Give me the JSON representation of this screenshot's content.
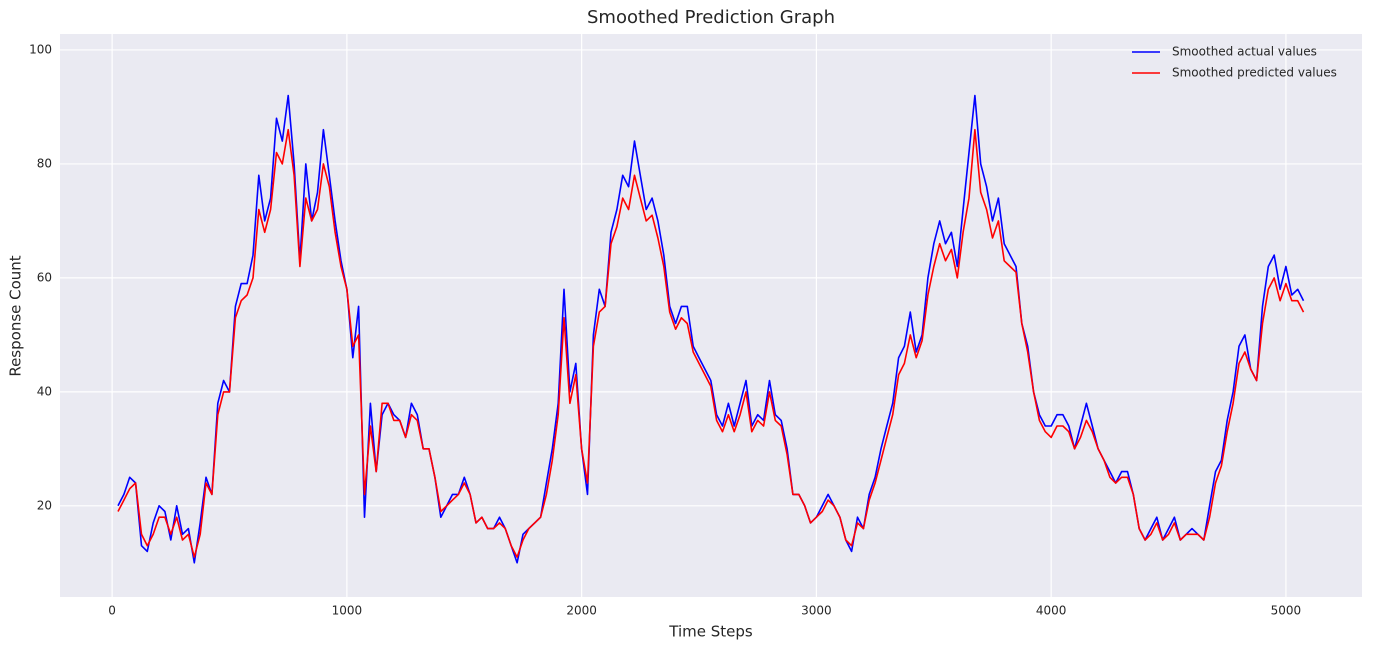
{
  "chart_data": {
    "type": "line",
    "title": "Smoothed Prediction Graph",
    "xlabel": "Time Steps",
    "ylabel": "Response Count",
    "x": [
      25,
      50,
      75,
      100,
      125,
      150,
      175,
      200,
      225,
      250,
      275,
      300,
      325,
      350,
      375,
      400,
      425,
      450,
      475,
      500,
      525,
      550,
      575,
      600,
      625,
      650,
      675,
      700,
      725,
      750,
      775,
      800,
      825,
      850,
      875,
      900,
      925,
      950,
      975,
      1000,
      1025,
      1050,
      1075,
      1100,
      1125,
      1150,
      1175,
      1200,
      1225,
      1250,
      1275,
      1300,
      1325,
      1350,
      1375,
      1400,
      1425,
      1450,
      1475,
      1500,
      1525,
      1550,
      1575,
      1600,
      1625,
      1650,
      1675,
      1700,
      1725,
      1750,
      1775,
      1800,
      1825,
      1850,
      1875,
      1900,
      1925,
      1950,
      1975,
      2000,
      2025,
      2050,
      2075,
      2100,
      2125,
      2150,
      2175,
      2200,
      2225,
      2250,
      2275,
      2300,
      2325,
      2350,
      2375,
      2400,
      2425,
      2450,
      2475,
      2500,
      2525,
      2550,
      2575,
      2600,
      2625,
      2650,
      2675,
      2700,
      2725,
      2750,
      2775,
      2800,
      2825,
      2850,
      2875,
      2900,
      2925,
      2950,
      2975,
      3000,
      3025,
      3050,
      3075,
      3100,
      3125,
      3150,
      3175,
      3200,
      3225,
      3250,
      3275,
      3300,
      3325,
      3350,
      3375,
      3400,
      3425,
      3450,
      3475,
      3500,
      3525,
      3550,
      3575,
      3600,
      3625,
      3650,
      3675,
      3700,
      3725,
      3750,
      3775,
      3800,
      3825,
      3850,
      3875,
      3900,
      3925,
      3950,
      3975,
      4000,
      4025,
      4050,
      4075,
      4100,
      4125,
      4150,
      4175,
      4200,
      4225,
      4250,
      4275,
      4300,
      4325,
      4350,
      4375,
      4400,
      4425,
      4450,
      4475,
      4500,
      4525,
      4550,
      4575,
      4600,
      4625,
      4650,
      4675,
      4700,
      4725,
      4750,
      4775,
      4800,
      4825,
      4850,
      4875,
      4900,
      4925,
      4950,
      4975,
      5000,
      5025,
      5050,
      5075
    ],
    "series": [
      {
        "name": "Smoothed actual values",
        "color": "#0000ff",
        "values": [
          20,
          22,
          25,
          24,
          13,
          12,
          17,
          20,
          19,
          14,
          20,
          15,
          16,
          10,
          17,
          25,
          22,
          38,
          42,
          40,
          55,
          59,
          59,
          64,
          78,
          70,
          74,
          88,
          84,
          92,
          80,
          63,
          80,
          70,
          75,
          86,
          78,
          70,
          63,
          58,
          46,
          55,
          18,
          38,
          26,
          36,
          38,
          36,
          35,
          32,
          38,
          36,
          30,
          30,
          25,
          18,
          20,
          22,
          22,
          25,
          22,
          17,
          18,
          16,
          16,
          18,
          16,
          13,
          10,
          15,
          16,
          17,
          18,
          24,
          30,
          38,
          58,
          40,
          45,
          30,
          22,
          50,
          58,
          55,
          68,
          72,
          78,
          76,
          84,
          78,
          72,
          74,
          70,
          64,
          55,
          52,
          55,
          55,
          48,
          46,
          44,
          42,
          36,
          34,
          38,
          34,
          38,
          42,
          34,
          36,
          35,
          42,
          36,
          35,
          30,
          22,
          22,
          20,
          17,
          18,
          20,
          22,
          20,
          18,
          14,
          12,
          18,
          16,
          22,
          25,
          30,
          34,
          38,
          46,
          48,
          54,
          47,
          50,
          60,
          66,
          70,
          66,
          68,
          62,
          72,
          82,
          92,
          80,
          76,
          70,
          74,
          66,
          64,
          62,
          52,
          48,
          40,
          36,
          34,
          34,
          36,
          36,
          34,
          30,
          34,
          38,
          34,
          30,
          28,
          26,
          24,
          26,
          26,
          22,
          16,
          14,
          16,
          18,
          14,
          16,
          18,
          14,
          15,
          16,
          15,
          14,
          20,
          26,
          28,
          35,
          40,
          48,
          50,
          44,
          42,
          55,
          62,
          64,
          58,
          62,
          57,
          58,
          56
        ]
      },
      {
        "name": "Smoothed predicted values",
        "color": "#ff0000",
        "values": [
          19,
          21,
          23,
          24,
          15,
          13,
          15,
          18,
          18,
          15,
          18,
          14,
          15,
          11,
          15,
          24,
          22,
          36,
          40,
          40,
          53,
          56,
          57,
          60,
          72,
          68,
          72,
          82,
          80,
          86,
          78,
          62,
          74,
          70,
          72,
          80,
          76,
          68,
          62,
          58,
          48,
          50,
          22,
          34,
          26,
          38,
          38,
          35,
          35,
          32,
          36,
          35,
          30,
          30,
          25,
          19,
          20,
          21,
          22,
          24,
          22,
          17,
          18,
          16,
          16,
          17,
          16,
          13,
          11,
          14,
          16,
          17,
          18,
          22,
          28,
          36,
          53,
          38,
          43,
          30,
          24,
          48,
          54,
          55,
          66,
          69,
          74,
          72,
          78,
          74,
          70,
          71,
          67,
          62,
          54,
          51,
          53,
          52,
          47,
          45,
          43,
          41,
          35,
          33,
          36,
          33,
          36,
          40,
          33,
          35,
          34,
          40,
          35,
          34,
          29,
          22,
          22,
          20,
          17,
          18,
          19,
          21,
          20,
          18,
          14,
          13,
          17,
          16,
          21,
          24,
          28,
          32,
          36,
          43,
          45,
          50,
          46,
          49,
          57,
          62,
          66,
          63,
          65,
          60,
          68,
          74,
          86,
          75,
          72,
          67,
          70,
          63,
          62,
          61,
          52,
          47,
          40,
          35,
          33,
          32,
          34,
          34,
          33,
          30,
          32,
          35,
          33,
          30,
          28,
          25,
          24,
          25,
          25,
          22,
          16,
          14,
          15,
          17,
          14,
          15,
          17,
          14,
          15,
          15,
          15,
          14,
          18,
          24,
          27,
          33,
          38,
          45,
          47,
          44,
          42,
          52,
          58,
          60,
          56,
          59,
          56,
          56,
          54
        ]
      }
    ],
    "xlim": [
      -222,
      5324
    ],
    "ylim": [
      4.0,
      102.8
    ],
    "xticks": [
      0,
      1000,
      2000,
      3000,
      4000,
      5000
    ],
    "yticks": [
      20,
      40,
      60,
      80,
      100
    ],
    "grid": true,
    "legend": "upper right"
  }
}
